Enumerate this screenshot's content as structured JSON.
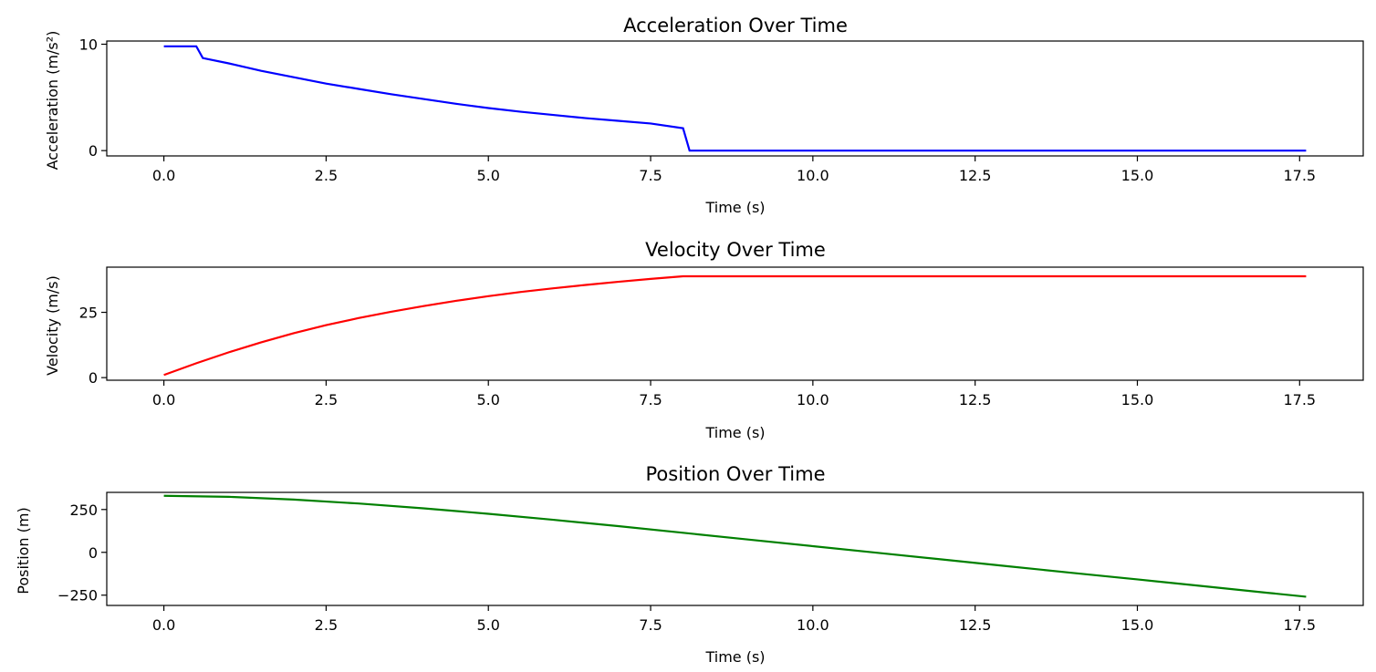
{
  "chart_data": [
    {
      "type": "line",
      "title": "Acceleration Over Time",
      "xlabel": "Time (s)",
      "ylabel": "Acceleration (m/s²)",
      "xlim": [
        -0.88,
        18.48
      ],
      "ylim": [
        -0.5,
        10.3
      ],
      "xticks": [
        0.0,
        2.5,
        5.0,
        7.5,
        10.0,
        12.5,
        15.0,
        17.5
      ],
      "xtick_labels": [
        "0.0",
        "2.5",
        "5.0",
        "7.5",
        "10.0",
        "12.5",
        "15.0",
        "17.5"
      ],
      "yticks": [
        0,
        10
      ],
      "ytick_labels": [
        "0",
        "10"
      ],
      "grid": false,
      "series": [
        {
          "color": "#0000ff",
          "x": [
            0,
            0.5,
            0.6,
            1.0,
            1.5,
            2.0,
            2.5,
            3.0,
            3.5,
            4.0,
            4.5,
            5.0,
            5.5,
            6.0,
            6.5,
            7.0,
            7.5,
            8.0,
            8.1,
            9.0,
            10.0,
            11.0,
            12.0,
            13.0,
            14.0,
            15.0,
            16.0,
            17.0,
            17.6
          ],
          "y": [
            9.8,
            9.8,
            8.7,
            8.2,
            7.5,
            6.9,
            6.3,
            5.8,
            5.3,
            4.85,
            4.4,
            4.0,
            3.65,
            3.35,
            3.05,
            2.8,
            2.55,
            2.1,
            0.0,
            0.0,
            0.0,
            0.0,
            0.0,
            0.0,
            0.0,
            0.0,
            0.0,
            0.0,
            0.0
          ]
        }
      ]
    },
    {
      "type": "line",
      "title": "Velocity Over Time",
      "xlabel": "Time (s)",
      "ylabel": "Velocity (m/s)",
      "xlim": [
        -0.88,
        18.48
      ],
      "ylim": [
        -1.0,
        42.3
      ],
      "xticks": [
        0.0,
        2.5,
        5.0,
        7.5,
        10.0,
        12.5,
        15.0,
        17.5
      ],
      "xtick_labels": [
        "0.0",
        "2.5",
        "5.0",
        "7.5",
        "10.0",
        "12.5",
        "15.0",
        "17.5"
      ],
      "yticks": [
        0,
        25
      ],
      "ytick_labels": [
        "0",
        "25"
      ],
      "grid": false,
      "series": [
        {
          "color": "#ff0000",
          "x": [
            0,
            0.5,
            1.0,
            1.5,
            2.0,
            2.5,
            3.0,
            3.5,
            4.0,
            4.5,
            5.0,
            5.5,
            6.0,
            6.5,
            7.0,
            7.5,
            8.0,
            9.0,
            10.0,
            11.0,
            12.0,
            13.0,
            14.0,
            15.0,
            16.0,
            17.0,
            17.6
          ],
          "y": [
            1.0,
            5.5,
            9.7,
            13.5,
            17.0,
            20.1,
            22.8,
            25.2,
            27.4,
            29.4,
            31.2,
            32.8,
            34.2,
            35.5,
            36.7,
            37.8,
            38.8,
            38.8,
            38.8,
            38.8,
            38.8,
            38.8,
            38.8,
            38.8,
            38.8,
            38.8,
            38.8
          ]
        }
      ]
    },
    {
      "type": "line",
      "title": "Position Over Time",
      "xlabel": "Time (s)",
      "ylabel": "Position (m)",
      "xlim": [
        -0.88,
        18.48
      ],
      "ylim": [
        -310,
        350
      ],
      "xticks": [
        0.0,
        2.5,
        5.0,
        7.5,
        10.0,
        12.5,
        15.0,
        17.5
      ],
      "xtick_labels": [
        "0.0",
        "2.5",
        "5.0",
        "7.5",
        "10.0",
        "12.5",
        "15.0",
        "17.5"
      ],
      "yticks": [
        -250,
        0,
        250
      ],
      "ytick_labels": [
        "−250",
        "0",
        "250"
      ],
      "grid": false,
      "series": [
        {
          "color": "#008000",
          "x": [
            0,
            1.0,
            2.0,
            3.0,
            4.0,
            5.0,
            6.0,
            7.0,
            8.0,
            9.0,
            10.0,
            11.0,
            12.0,
            13.0,
            14.0,
            15.0,
            16.0,
            17.0,
            17.6
          ],
          "y": [
            330,
            324,
            308,
            285,
            257,
            225,
            190,
            153,
            114,
            75,
            36,
            -3,
            -42,
            -81,
            -120,
            -158,
            -197,
            -236,
            -259
          ]
        }
      ]
    }
  ]
}
